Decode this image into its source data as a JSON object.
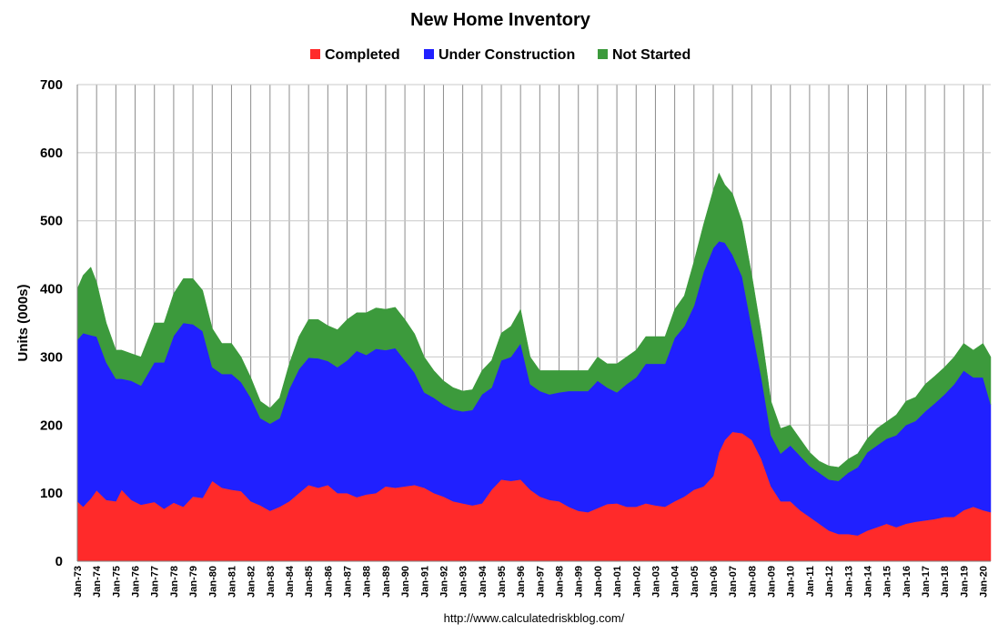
{
  "chart_data": {
    "type": "area",
    "stacked": true,
    "title": "New Home Inventory",
    "ylabel": "Units (000s)",
    "xlabel": "",
    "ylim": [
      0,
      700
    ],
    "yticks": [
      0,
      100,
      200,
      300,
      400,
      500,
      600,
      700
    ],
    "grid": true,
    "legend_position": "top-center",
    "source_note": "http://www.calculatedriskblog.com/",
    "categories": [
      "Jan-73",
      "Jan-74",
      "Jan-75",
      "Jan-76",
      "Jan-77",
      "Jan-78",
      "Jan-79",
      "Jan-80",
      "Jan-81",
      "Jan-82",
      "Jan-83",
      "Jan-84",
      "Jan-85",
      "Jan-86",
      "Jan-87",
      "Jan-88",
      "Jan-89",
      "Jan-90",
      "Jan-91",
      "Jan-92",
      "Jan-93",
      "Jan-94",
      "Jan-95",
      "Jan-96",
      "Jan-97",
      "Jan-98",
      "Jan-99",
      "Jan-00",
      "Jan-01",
      "Jan-02",
      "Jan-03",
      "Jan-04",
      "Jan-05",
      "Jan-06",
      "Jan-07",
      "Jan-08",
      "Jan-09",
      "Jan-10",
      "Jan-11",
      "Jan-12",
      "Jan-13",
      "Jan-14",
      "Jan-15",
      "Jan-16",
      "Jan-17",
      "Jan-18",
      "Jan-19",
      "Jan-20"
    ],
    "x_period_years": [
      1973,
      2020.4
    ],
    "series": [
      {
        "name": "Completed",
        "color": "#ff2a2a",
        "x": [
          1973.0,
          1973.3,
          1973.7,
          1974.0,
          1974.5,
          1975.0,
          1975.3,
          1975.8,
          1976.3,
          1977.0,
          1977.5,
          1978.0,
          1978.5,
          1979.0,
          1979.5,
          1980.0,
          1980.5,
          1981.0,
          1981.5,
          1982.0,
          1982.5,
          1983.0,
          1983.5,
          1984.0,
          1984.5,
          1985.0,
          1985.5,
          1986.0,
          1986.5,
          1987.0,
          1987.5,
          1988.0,
          1988.5,
          1989.0,
          1989.5,
          1990.0,
          1990.5,
          1991.0,
          1991.5,
          1992.0,
          1992.5,
          1993.0,
          1993.5,
          1994.0,
          1994.5,
          1995.0,
          1995.5,
          1996.0,
          1996.5,
          1997.0,
          1997.5,
          1998.0,
          1998.5,
          1999.0,
          1999.5,
          2000.0,
          2000.5,
          2001.0,
          2001.5,
          2002.0,
          2002.5,
          2003.0,
          2003.5,
          2004.0,
          2004.5,
          2005.0,
          2005.5,
          2006.0,
          2006.3,
          2006.6,
          2007.0,
          2007.5,
          2008.0,
          2008.5,
          2009.0,
          2009.5,
          2010.0,
          2010.5,
          2011.0,
          2011.5,
          2012.0,
          2012.5,
          2013.0,
          2013.5,
          2014.0,
          2014.5,
          2015.0,
          2015.5,
          2016.0,
          2016.5,
          2017.0,
          2017.5,
          2018.0,
          2018.5,
          2019.0,
          2019.5,
          2020.0,
          2020.4
        ],
        "values": [
          88,
          80,
          92,
          104,
          90,
          88,
          105,
          90,
          83,
          87,
          77,
          86,
          80,
          95,
          93,
          118,
          108,
          105,
          103,
          88,
          82,
          74,
          80,
          88,
          100,
          112,
          108,
          112,
          100,
          100,
          94,
          98,
          100,
          110,
          108,
          110,
          112,
          108,
          100,
          95,
          88,
          85,
          82,
          85,
          105,
          120,
          118,
          120,
          105,
          95,
          90,
          88,
          80,
          74,
          72,
          78,
          84,
          85,
          80,
          80,
          85,
          82,
          80,
          88,
          95,
          105,
          110,
          125,
          160,
          178,
          190,
          188,
          178,
          150,
          110,
          88,
          88,
          75,
          65,
          55,
          45,
          40,
          40,
          38,
          45,
          50,
          55,
          50,
          55,
          58,
          60,
          62,
          65,
          65,
          75,
          80,
          75,
          72
        ]
      },
      {
        "name": "Under Construction",
        "color": "#2020ff",
        "x": [
          1973.0,
          1973.3,
          1973.7,
          1974.0,
          1974.5,
          1975.0,
          1975.3,
          1975.8,
          1976.3,
          1977.0,
          1977.5,
          1978.0,
          1978.5,
          1979.0,
          1979.5,
          1980.0,
          1980.5,
          1981.0,
          1981.5,
          1982.0,
          1982.5,
          1983.0,
          1983.5,
          1984.0,
          1984.5,
          1985.0,
          1985.5,
          1986.0,
          1986.5,
          1987.0,
          1987.5,
          1988.0,
          1988.5,
          1989.0,
          1989.5,
          1990.0,
          1990.5,
          1991.0,
          1991.5,
          1992.0,
          1992.5,
          1993.0,
          1993.5,
          1994.0,
          1994.5,
          1995.0,
          1995.5,
          1996.0,
          1996.5,
          1997.0,
          1997.5,
          1998.0,
          1998.5,
          1999.0,
          1999.5,
          2000.0,
          2000.5,
          2001.0,
          2001.5,
          2002.0,
          2002.5,
          2003.0,
          2003.5,
          2004.0,
          2004.5,
          2005.0,
          2005.5,
          2006.0,
          2006.3,
          2006.6,
          2007.0,
          2007.5,
          2008.0,
          2008.5,
          2009.0,
          2009.5,
          2010.0,
          2010.5,
          2011.0,
          2011.5,
          2012.0,
          2012.5,
          2013.0,
          2013.5,
          2014.0,
          2014.5,
          2015.0,
          2015.5,
          2016.0,
          2016.5,
          2017.0,
          2017.5,
          2018.0,
          2018.5,
          2019.0,
          2019.5,
          2020.0,
          2020.4
        ],
        "values": [
          237,
          255,
          240,
          226,
          202,
          180,
          163,
          175,
          175,
          205,
          215,
          245,
          270,
          253,
          245,
          167,
          167,
          170,
          160,
          152,
          128,
          128,
          130,
          165,
          182,
          187,
          190,
          182,
          185,
          195,
          215,
          205,
          212,
          200,
          205,
          185,
          165,
          140,
          140,
          135,
          135,
          135,
          140,
          160,
          150,
          175,
          182,
          200,
          155,
          155,
          155,
          160,
          170,
          176,
          178,
          187,
          171,
          163,
          180,
          190,
          205,
          208,
          210,
          240,
          250,
          270,
          315,
          335,
          310,
          290,
          260,
          230,
          165,
          120,
          75,
          70,
          82,
          80,
          75,
          75,
          75,
          78,
          90,
          100,
          115,
          120,
          125,
          135,
          145,
          148,
          160,
          170,
          180,
          195,
          205,
          190,
          195,
          158
        ]
      },
      {
        "name": "Not Started",
        "color": "#3c9a3c",
        "x": [
          1973.0,
          1973.3,
          1973.7,
          1974.0,
          1974.5,
          1975.0,
          1975.3,
          1975.8,
          1976.3,
          1977.0,
          1977.5,
          1978.0,
          1978.5,
          1979.0,
          1979.5,
          1980.0,
          1980.5,
          1981.0,
          1981.5,
          1982.0,
          1982.5,
          1983.0,
          1983.5,
          1984.0,
          1984.5,
          1985.0,
          1985.5,
          1986.0,
          1986.5,
          1987.0,
          1987.5,
          1988.0,
          1988.5,
          1989.0,
          1989.5,
          1990.0,
          1990.5,
          1991.0,
          1991.5,
          1992.0,
          1992.5,
          1993.0,
          1993.5,
          1994.0,
          1994.5,
          1995.0,
          1995.5,
          1996.0,
          1996.5,
          1997.0,
          1997.5,
          1998.0,
          1998.5,
          1999.0,
          1999.5,
          2000.0,
          2000.5,
          2001.0,
          2001.5,
          2002.0,
          2002.5,
          2003.0,
          2003.5,
          2004.0,
          2004.5,
          2005.0,
          2005.5,
          2006.0,
          2006.3,
          2006.6,
          2007.0,
          2007.5,
          2008.0,
          2008.5,
          2009.0,
          2009.5,
          2010.0,
          2010.5,
          2011.0,
          2011.5,
          2012.0,
          2012.5,
          2013.0,
          2013.5,
          2014.0,
          2014.5,
          2015.0,
          2015.5,
          2016.0,
          2016.5,
          2017.0,
          2017.5,
          2018.0,
          2018.5,
          2019.0,
          2019.5,
          2020.0,
          2020.4
        ],
        "values": [
          75,
          85,
          100,
          80,
          58,
          42,
          42,
          40,
          42,
          58,
          58,
          62,
          65,
          67,
          60,
          57,
          45,
          45,
          37,
          30,
          25,
          23,
          30,
          37,
          48,
          56,
          57,
          52,
          55,
          60,
          56,
          62,
          60,
          60,
          60,
          60,
          57,
          52,
          40,
          35,
          32,
          30,
          30,
          35,
          40,
          40,
          45,
          50,
          40,
          30,
          35,
          32,
          30,
          30,
          30,
          35,
          35,
          42,
          40,
          40,
          40,
          40,
          40,
          42,
          45,
          65,
          70,
          85,
          100,
          85,
          90,
          80,
          77,
          65,
          50,
          37,
          30,
          25,
          20,
          17,
          20,
          20,
          20,
          20,
          20,
          25,
          25,
          30,
          35,
          35,
          40,
          40,
          40,
          40,
          40,
          40,
          50,
          70
        ]
      }
    ]
  }
}
